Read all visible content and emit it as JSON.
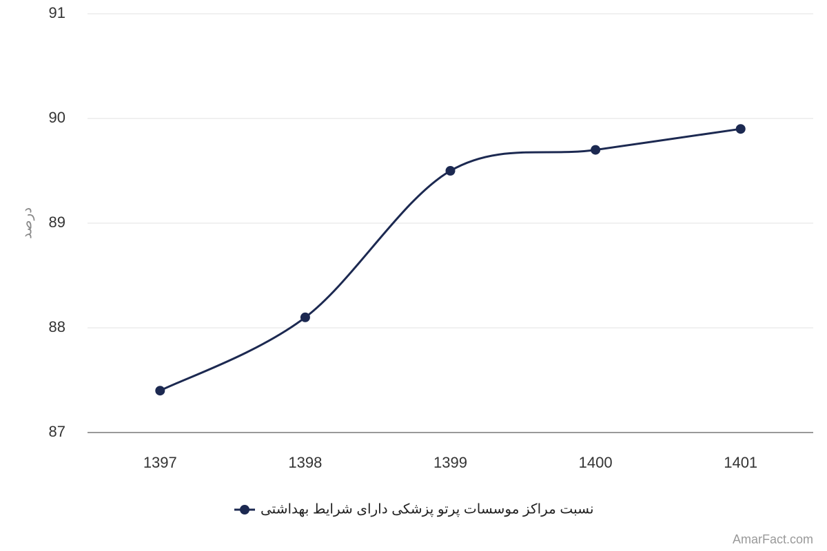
{
  "chart_data": {
    "type": "line",
    "y_label": "درصد",
    "categories": [
      "1397",
      "1398",
      "1399",
      "1400",
      "1401"
    ],
    "series": [
      {
        "name": "نسبت مراکز موسسات پرتو پزشکی دارای شرایط بهداشتی",
        "color": "#1c2951",
        "values": [
          87.4,
          88.1,
          89.5,
          89.7,
          89.9
        ]
      }
    ],
    "ylim": [
      87,
      91
    ],
    "yticks": [
      87,
      88,
      89,
      90,
      91
    ],
    "grid": true,
    "smooth": true,
    "credit": "AmarFact.com"
  }
}
